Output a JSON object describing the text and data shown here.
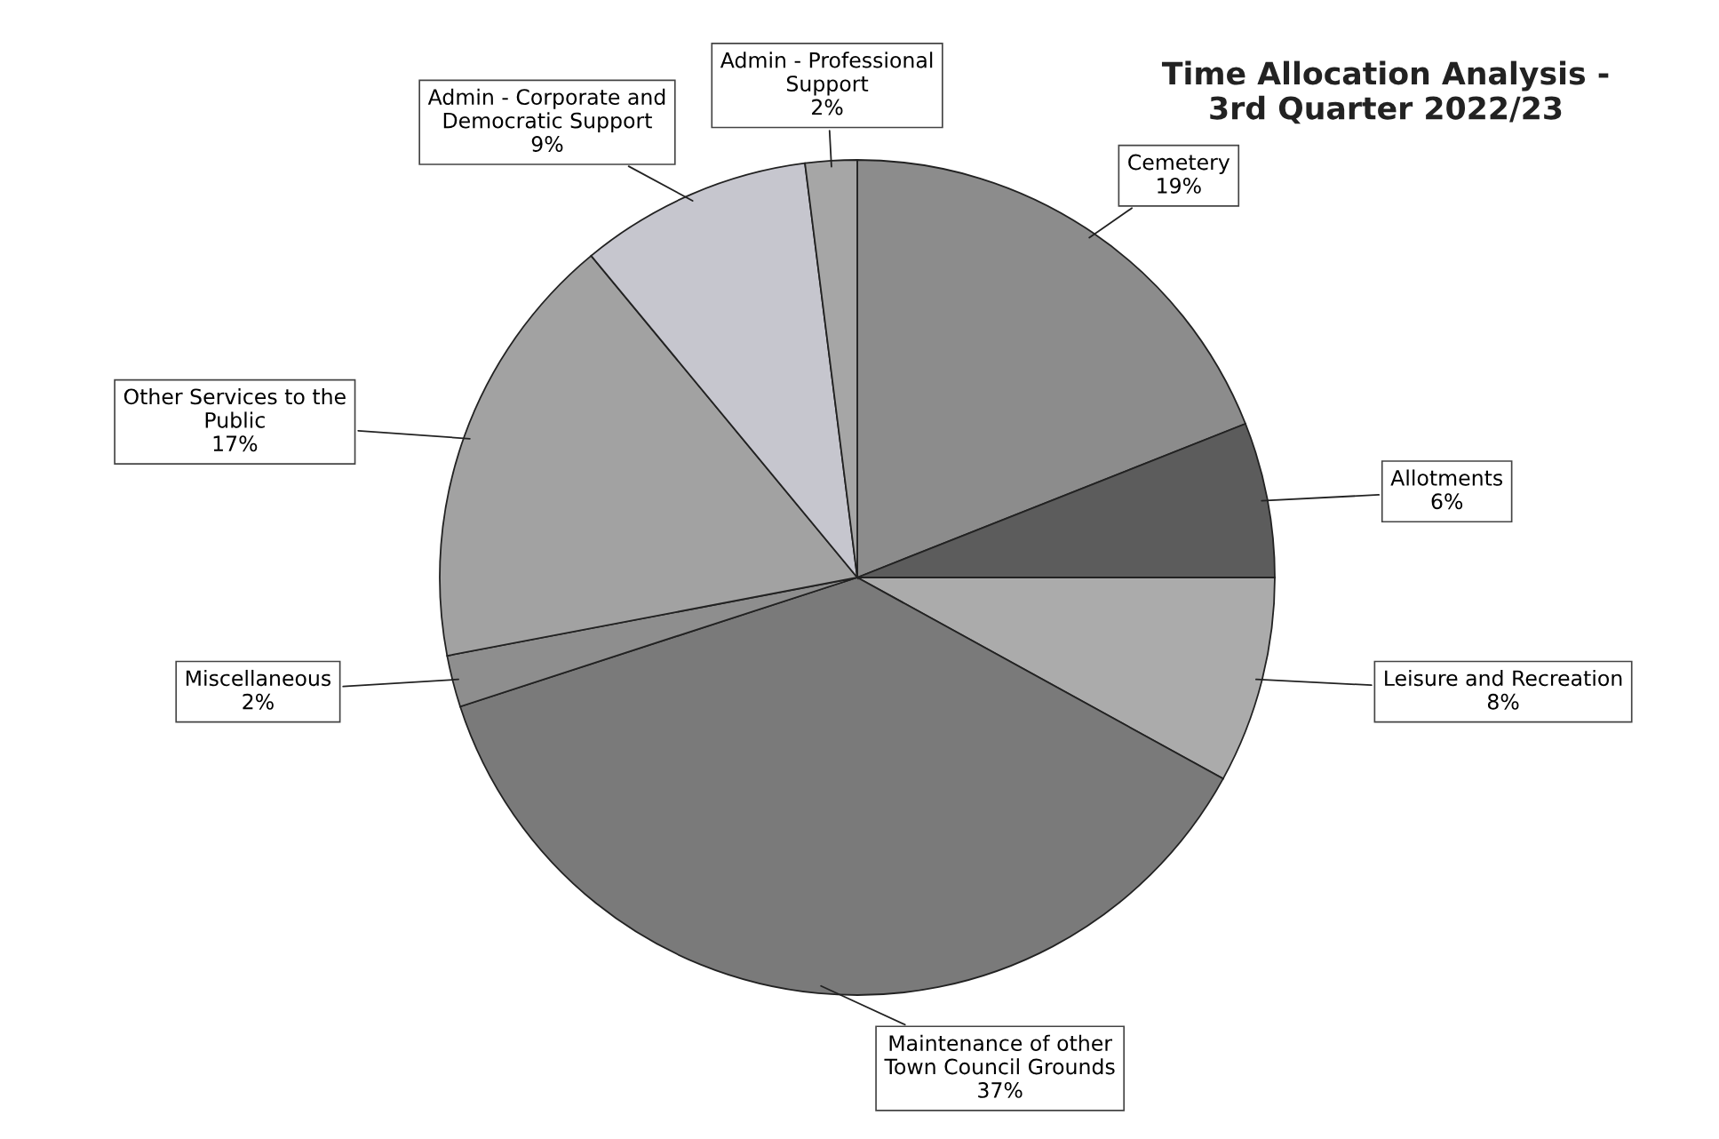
{
  "chart_data": {
    "type": "pie",
    "title": "Time Allocation Analysis - 3rd Quarter 2022/23",
    "categories": [
      "Cemetery",
      "Allotments",
      "Leisure and Recreation",
      "Maintenance of other Town Council Grounds",
      "Miscellaneous",
      "Other Services to the Public",
      "Admin - Corporate and Democratic Support",
      "Admin - Professional Support"
    ],
    "values": [
      19,
      6,
      8,
      37,
      2,
      17,
      9,
      2
    ],
    "value_labels": [
      "19%",
      "6%",
      "8%",
      "37%",
      "2%",
      "17%",
      "9%",
      "2%"
    ],
    "colors": [
      "#8c8c8c",
      "#5c5c5c",
      "#ababab",
      "#7a7a7a",
      "#8e8e8e",
      "#a2a2a2",
      "#c6c6ce",
      "#a6a6a6"
    ]
  }
}
